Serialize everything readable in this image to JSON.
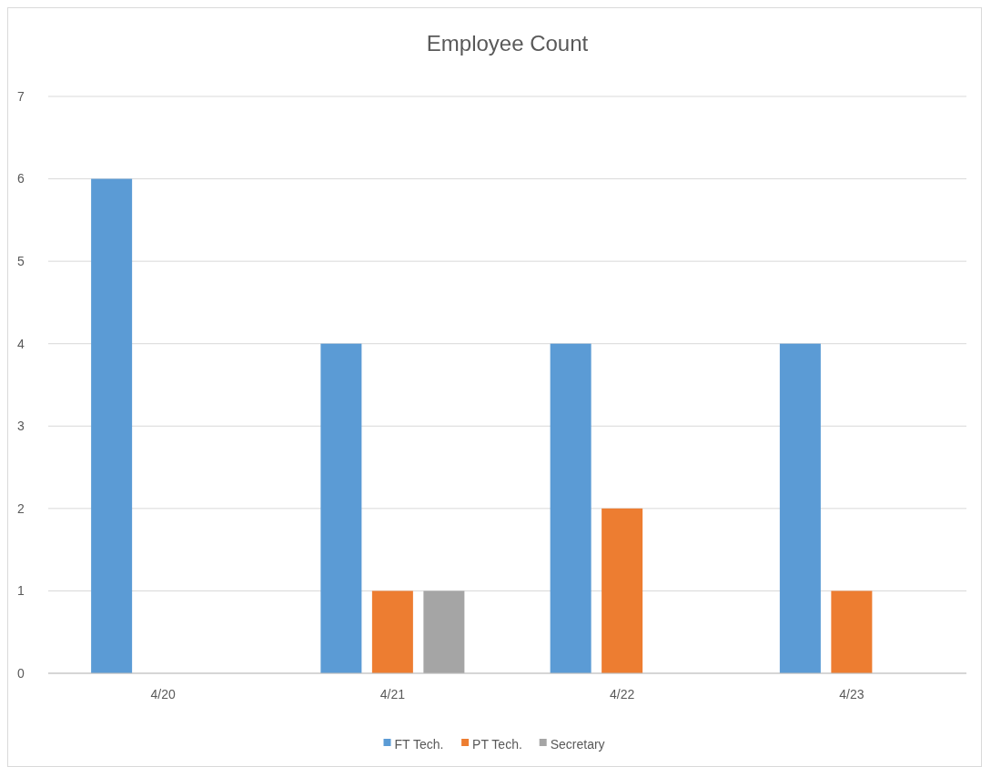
{
  "chart_data": {
    "type": "bar",
    "title": "Employee Count",
    "categories": [
      "4/20",
      "4/21",
      "4/22",
      "4/23"
    ],
    "series": [
      {
        "name": "FT Tech.",
        "color": "#5b9bd5",
        "values": [
          6,
          4,
          4,
          4
        ]
      },
      {
        "name": "PT Tech.",
        "color": "#ed7d31",
        "values": [
          0,
          1,
          2,
          1
        ]
      },
      {
        "name": "Secretary",
        "color": "#a5a5a5",
        "values": [
          0,
          1,
          0,
          0
        ]
      }
    ],
    "ylim": [
      0,
      7
    ],
    "yticks": [
      0,
      1,
      2,
      3,
      4,
      5,
      6,
      7
    ],
    "grid": "y",
    "legend": "bottom"
  }
}
